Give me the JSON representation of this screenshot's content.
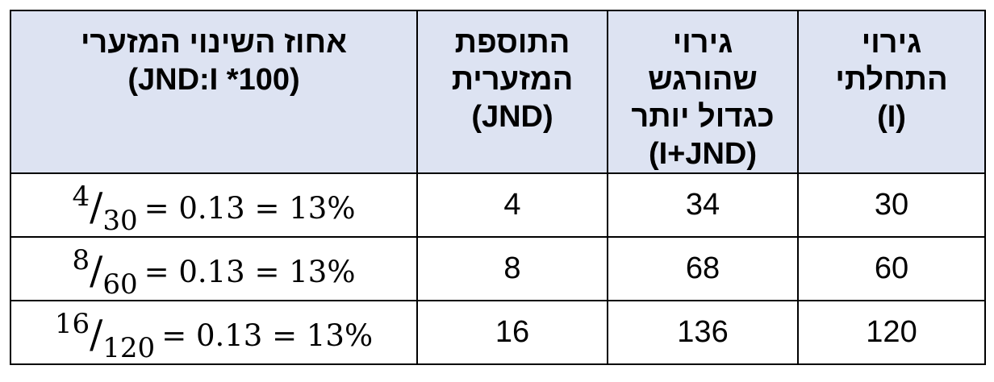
{
  "table": {
    "headers": [
      [
        "גירוי",
        "התחלתי",
        "(I)"
      ],
      [
        "גירוי",
        "שהורגש",
        "כגדול יותר",
        "(I+JND)"
      ],
      [
        "התוספת",
        "המזערית",
        "(JND)"
      ],
      [
        "אחוז השינוי המזערי",
        "(JND:I *100)"
      ]
    ],
    "rows": [
      {
        "initial": "30",
        "perceived": "34",
        "jnd": "4",
        "num": "4",
        "den": "30",
        "rest": "= 0.13 = 13%"
      },
      {
        "initial": "60",
        "perceived": "68",
        "jnd": "8",
        "num": "8",
        "den": "60",
        "rest": "= 0.13 = 13%"
      },
      {
        "initial": "120",
        "perceived": "136",
        "jnd": "16",
        "num": "16",
        "den": "120",
        "rest": "= 0.13 = 13%"
      }
    ]
  },
  "colors": {
    "header_background": "#dde3f2",
    "border": "#000000"
  }
}
